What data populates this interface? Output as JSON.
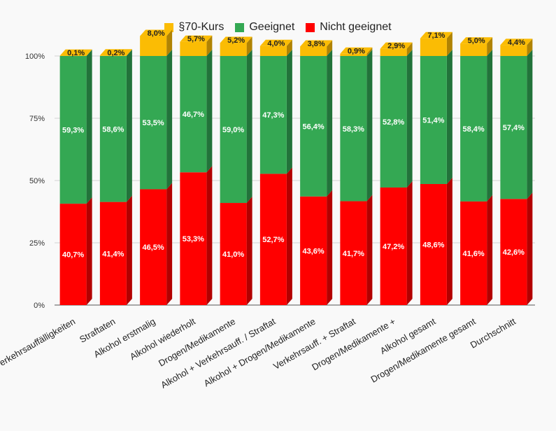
{
  "chart_data": {
    "type": "bar",
    "stacked": true,
    "title": "",
    "xlabel": "",
    "ylabel": "",
    "ylim": [
      0,
      100
    ],
    "y_ticks": [
      "0%",
      "25%",
      "50%",
      "75%",
      "100%"
    ],
    "legend_position": "top",
    "categories": [
      "Verkehrsauffälligkeiten",
      "Straftaten",
      "Alkohol erstmalig",
      "Alkohol wiederholt",
      "Drogen/Medikamente",
      "Alkohol + Verkehrsauff. / Straftat",
      "Alkohol + Drogen/Medikamente",
      "Verkehrsauff. + Straftat",
      "Drogen/Medikamente +",
      "Alkohol gesamt",
      "Drogen/Medikamente gesamt",
      "Durchschnitt"
    ],
    "series": [
      {
        "name": "Nicht geeignet",
        "color": "#ff0000",
        "side_color": "#b30000",
        "values": [
          40.7,
          41.4,
          46.5,
          53.3,
          41.0,
          52.7,
          43.6,
          41.7,
          47.2,
          48.6,
          41.6,
          42.6
        ],
        "labels": [
          "40,7%",
          "41,4%",
          "46,5%",
          "53,3%",
          "41,0%",
          "52,7%",
          "43,6%",
          "41,7%",
          "47,2%",
          "48,6%",
          "41,6%",
          "42,6%"
        ]
      },
      {
        "name": "Geeignet",
        "color": "#34a853",
        "side_color": "#22733a",
        "values": [
          59.3,
          58.6,
          53.5,
          46.7,
          59.0,
          47.3,
          56.4,
          58.3,
          52.8,
          51.4,
          58.4,
          57.4
        ],
        "labels": [
          "59,3%",
          "58,6%",
          "53,5%",
          "46,7%",
          "59,0%",
          "47,3%",
          "56,4%",
          "58,3%",
          "52,8%",
          "51,4%",
          "58,4%",
          "57,4%"
        ]
      },
      {
        "name": "§70-Kurs",
        "color": "#fbbc04",
        "side_color": "#b08303",
        "values": [
          0.1,
          0.2,
          8.0,
          5.7,
          5.2,
          4.0,
          3.8,
          0.9,
          2.9,
          7.1,
          5.0,
          4.4
        ],
        "labels": [
          "0,1%",
          "0,2%",
          "8,0%",
          "5,7%",
          "5,2%",
          "4,0%",
          "3,8%",
          "0,9%",
          "2,9%",
          "7,1%",
          "5,0%",
          "4,4%"
        ]
      }
    ],
    "legend_order": [
      "§70-Kurs",
      "Geeignet",
      "Nicht geeignet"
    ]
  }
}
